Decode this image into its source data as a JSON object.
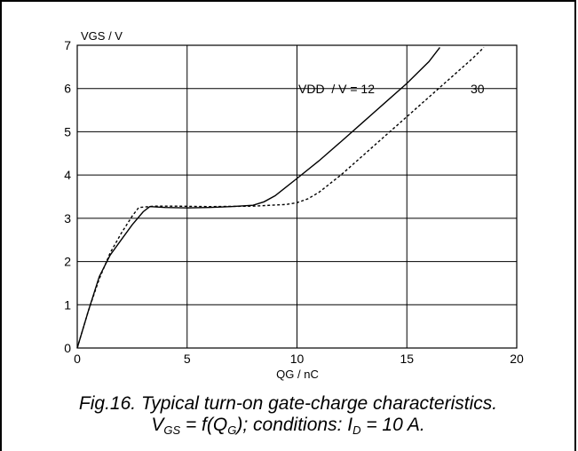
{
  "chart_data": {
    "type": "line",
    "ylabel": "VGS / V",
    "xlabel": "QG / nC",
    "xlim": [
      0,
      20
    ],
    "ylim": [
      0,
      7
    ],
    "xticks": [
      "0",
      "5",
      "10",
      "15",
      "20"
    ],
    "yticks": [
      "0",
      "1",
      "2",
      "3",
      "4",
      "5",
      "6",
      "7"
    ],
    "grid": true,
    "series": [
      {
        "name": "12",
        "style": "solid",
        "x": [
          0,
          0.5,
          1.0,
          1.5,
          2.0,
          2.5,
          3.0,
          3.3,
          4.0,
          5.0,
          6.0,
          7.0,
          8.0,
          8.5,
          9.0,
          9.5,
          10.0,
          11.0,
          12.0,
          13.0,
          14.0,
          15.0,
          16.0,
          16.5
        ],
        "y": [
          0,
          0.85,
          1.65,
          2.15,
          2.5,
          2.85,
          3.15,
          3.27,
          3.25,
          3.24,
          3.25,
          3.27,
          3.3,
          3.38,
          3.52,
          3.72,
          3.92,
          4.33,
          4.77,
          5.22,
          5.67,
          6.12,
          6.62,
          6.95
        ]
      },
      {
        "name": "30",
        "style": "dotted",
        "x": [
          0,
          0.5,
          1.0,
          1.5,
          2.0,
          2.5,
          2.8,
          3.5,
          4.5,
          6.0,
          8.0,
          9.5,
          10.0,
          10.5,
          11.0,
          11.5,
          12.0,
          13.0,
          14.0,
          15.0,
          16.0,
          17.0,
          18.0,
          18.5
        ],
        "y": [
          0,
          0.85,
          1.6,
          2.2,
          2.65,
          3.05,
          3.25,
          3.28,
          3.28,
          3.27,
          3.28,
          3.32,
          3.36,
          3.45,
          3.6,
          3.8,
          4.0,
          4.45,
          4.9,
          5.35,
          5.8,
          6.25,
          6.7,
          6.95
        ]
      }
    ],
    "annotations": [
      {
        "text": "VDD  / V = 12"
      },
      {
        "text": "30"
      }
    ]
  },
  "caption": {
    "line1": "Fig.16.  Typical turn-on gate-charge characteristics.",
    "line2_a": "V",
    "line2_sub1": "GS",
    "line2_b": " = f(Q",
    "line2_sub2": "G",
    "line2_c": "); conditions: I",
    "line2_sub3": "D",
    "line2_d": " = 10 A."
  }
}
